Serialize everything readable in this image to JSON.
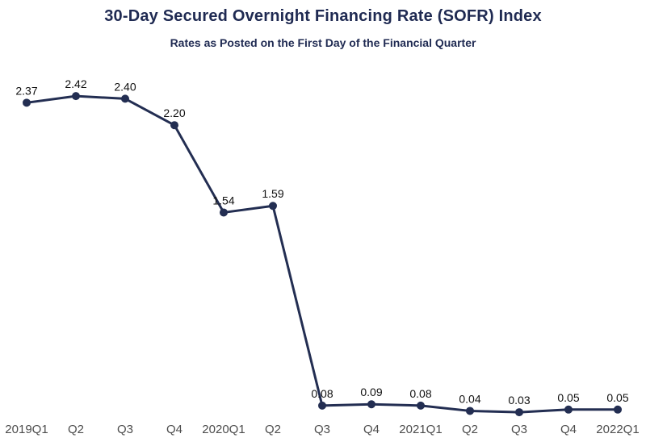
{
  "chart_data": {
    "type": "line",
    "title": "30-Day Secured Overnight Financing Rate (SOFR) Index",
    "subtitle": "Rates as Posted on the First Day of the Financial Quarter",
    "categories": [
      "2019Q1",
      "Q2",
      "Q3",
      "Q4",
      "2020Q1",
      "Q2",
      "Q3",
      "Q4",
      "2021Q1",
      "Q2",
      "Q3",
      "Q4",
      "2022Q1"
    ],
    "values": [
      2.37,
      2.42,
      2.4,
      2.2,
      1.54,
      1.59,
      0.08,
      0.09,
      0.08,
      0.04,
      0.03,
      0.05,
      0.05
    ],
    "point_labels": [
      "2.37",
      "2.42",
      "2.40",
      "2.20",
      "1.54",
      "1.59",
      "0.08",
      "0.09",
      "0.08",
      "0.04",
      "0.03",
      "0.05",
      "0.05"
    ],
    "xlabel": "",
    "ylabel": "",
    "ylim": [
      0,
      2.6
    ],
    "grid": false,
    "legend": false,
    "y_axis_visible": false,
    "colors": {
      "title": "#1f2a52",
      "subtitle": "#1f2a52",
      "line": "#232e52",
      "marker": "#232e52",
      "data_label": "#111111",
      "axis_label": "#4d4d4d",
      "background": "#ffffff"
    }
  }
}
